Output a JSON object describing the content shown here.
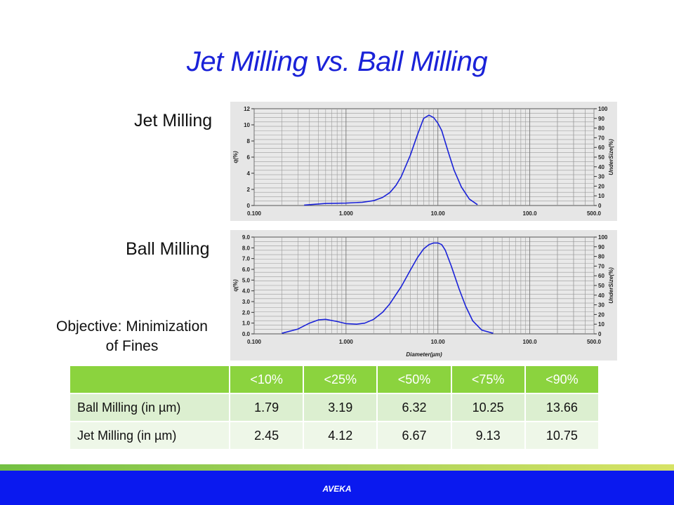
{
  "slide": {
    "title": "Jet Milling vs. Ball Milling",
    "label_jet": "Jet Milling",
    "label_ball": "Ball Milling",
    "objective_line1": "Objective: Minimization",
    "objective_line2": "of Fines",
    "footer": "AVEKA"
  },
  "colors": {
    "title": "#1a22d8",
    "curve": "#1a22d8",
    "table_header": "#8bd33e",
    "footer_band": "#0a19ef"
  },
  "table": {
    "headers": [
      "",
      "<10%",
      "<25%",
      "<50%",
      "<75%",
      "<90%"
    ],
    "rows": [
      {
        "label": "Ball Milling (in µm)",
        "values": [
          "1.79",
          "3.19",
          "6.32",
          "10.25",
          "13.66"
        ]
      },
      {
        "label": "Jet Milling (in µm)",
        "values": [
          "2.45",
          "4.12",
          "6.67",
          "9.13",
          "10.75"
        ]
      }
    ]
  },
  "chart_data": [
    {
      "type": "line",
      "title": "Jet Milling",
      "xlabel": "",
      "ylabel": "q(%)",
      "y2label": "UnderSize(%)",
      "xscale": "log",
      "xlim": [
        0.1,
        500
      ],
      "ylim": [
        0,
        12
      ],
      "y2lim": [
        0,
        100
      ],
      "xticks": [
        "0.100",
        "1.000",
        "10.00",
        "100.0",
        "500.0"
      ],
      "yticks": [
        "0",
        "2",
        "4",
        "6",
        "8",
        "10",
        "12"
      ],
      "y2ticks": [
        "0",
        "10",
        "20",
        "30",
        "40",
        "50",
        "60",
        "70",
        "80",
        "90",
        "100"
      ],
      "grid": true,
      "x": [
        0.35,
        0.6,
        1.0,
        1.5,
        2.0,
        2.5,
        3.0,
        3.5,
        4.0,
        5.0,
        6.0,
        7.0,
        8.0,
        9.0,
        10.0,
        11.0,
        13.0,
        15.0,
        18.0,
        22.0,
        27.0
      ],
      "y": [
        0.05,
        0.25,
        0.3,
        0.4,
        0.6,
        1.0,
        1.6,
        2.5,
        3.6,
        6.2,
        8.8,
        10.8,
        11.2,
        10.9,
        10.2,
        9.3,
        6.6,
        4.4,
        2.3,
        0.8,
        0.1
      ]
    },
    {
      "type": "line",
      "title": "Ball Milling",
      "xlabel": "Diameter(µm)",
      "ylabel": "q(%)",
      "y2label": "UnderSize(%)",
      "xscale": "log",
      "xlim": [
        0.1,
        500
      ],
      "ylim": [
        0,
        9
      ],
      "y2lim": [
        0,
        100
      ],
      "xticks": [
        "0.100",
        "1.000",
        "10.00",
        "100.0",
        "500.0"
      ],
      "yticks": [
        "0.0",
        "1.0",
        "2.0",
        "3.0",
        "4.0",
        "5.0",
        "6.0",
        "7.0",
        "8.0",
        "9.0"
      ],
      "y2ticks": [
        "0",
        "10",
        "20",
        "30",
        "40",
        "50",
        "60",
        "70",
        "80",
        "90",
        "100"
      ],
      "grid": true,
      "x": [
        0.2,
        0.3,
        0.4,
        0.5,
        0.6,
        0.8,
        1.0,
        1.3,
        1.6,
        2.0,
        2.5,
        3.0,
        4.0,
        5.0,
        6.0,
        7.0,
        8.0,
        9.0,
        10.0,
        11.0,
        12.0,
        14.0,
        17.0,
        20.0,
        24.0,
        30.0,
        40.0
      ],
      "y": [
        0.05,
        0.45,
        1.0,
        1.3,
        1.35,
        1.15,
        0.95,
        0.9,
        1.0,
        1.35,
        2.0,
        2.8,
        4.4,
        5.9,
        7.1,
        7.9,
        8.3,
        8.45,
        8.45,
        8.3,
        7.8,
        6.3,
        4.2,
        2.6,
        1.2,
        0.35,
        0.05
      ]
    }
  ]
}
